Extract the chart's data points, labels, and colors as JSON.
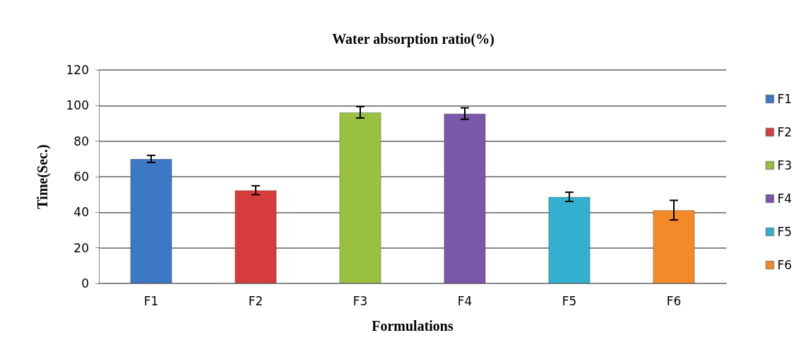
{
  "chart_data": {
    "type": "bar",
    "title": "Water absorption ratio(%)",
    "xlabel": "Formulations",
    "ylabel": "Time(Sec.)",
    "categories": [
      "F1",
      "F2",
      "F3",
      "F4",
      "F5",
      "F6"
    ],
    "stacked": true,
    "series": [
      {
        "name": "F1",
        "color": "#3c78c4",
        "values": [
          70,
          null,
          null,
          null,
          null,
          null
        ],
        "errors": [
          2,
          null,
          null,
          null,
          null,
          null
        ]
      },
      {
        "name": "F2",
        "color": "#d63c3c",
        "values": [
          null,
          52.4,
          null,
          null,
          null,
          null
        ],
        "errors": [
          null,
          2.5,
          null,
          null,
          null,
          null
        ]
      },
      {
        "name": "F3",
        "color": "#99c040",
        "values": [
          null,
          null,
          96.2,
          null,
          null,
          null
        ],
        "errors": [
          null,
          null,
          3.2,
          null,
          null,
          null
        ]
      },
      {
        "name": "F4",
        "color": "#7a57a8",
        "values": [
          null,
          null,
          null,
          95.5,
          null,
          null
        ],
        "errors": [
          null,
          null,
          null,
          3.2,
          null,
          null
        ]
      },
      {
        "name": "F5",
        "color": "#33b0d0",
        "values": [
          null,
          null,
          null,
          null,
          48.7,
          null
        ],
        "errors": [
          null,
          null,
          null,
          null,
          2.6,
          null
        ]
      },
      {
        "name": "F6",
        "color": "#f28a2a",
        "values": [
          null,
          null,
          null,
          null,
          null,
          41.2
        ],
        "errors": [
          null,
          null,
          null,
          null,
          null,
          5.5
        ]
      }
    ],
    "ylim": [
      0,
      120
    ],
    "yticks": [
      0,
      20,
      40,
      60,
      80,
      100,
      120
    ],
    "grid": "y",
    "legend": "right"
  }
}
